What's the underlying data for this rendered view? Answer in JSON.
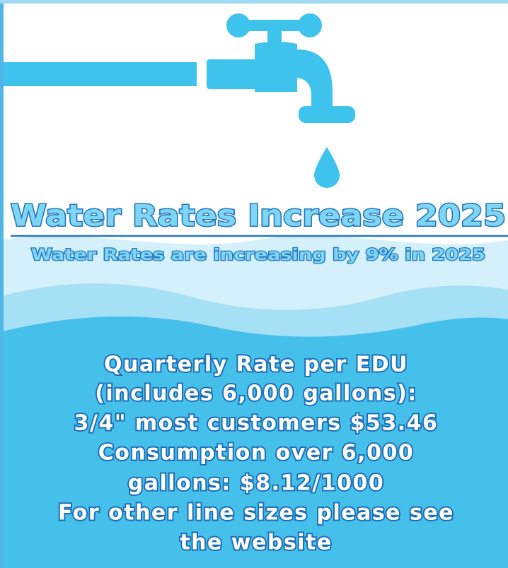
{
  "title": "Water Rates Increase 2025",
  "subtitle": "Water Rates are increasing by 9% in 2025",
  "body": {
    "lines": [
      "Quarterly Rate per EDU",
      "(includes 6,000 gallons):",
      "3/4\" most customers $53.46",
      "Consumption over 6,000",
      "gallons:  $8.12/1000",
      "For other line sizes please see",
      "the website"
    ]
  }
}
